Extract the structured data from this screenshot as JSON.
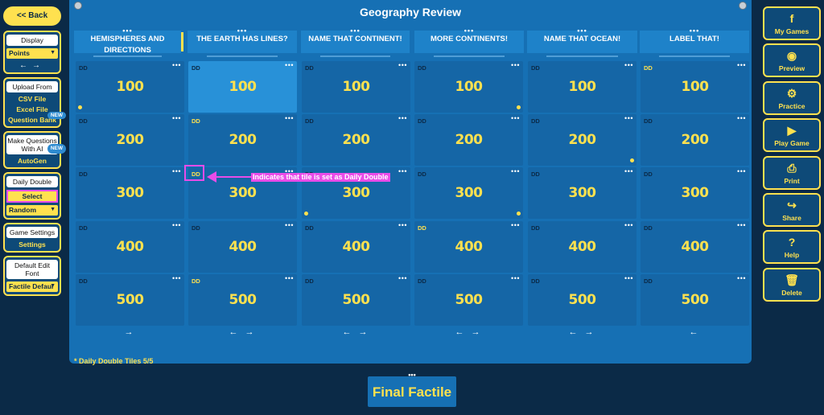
{
  "left": {
    "back_label": "<< Back",
    "display": {
      "label": "Display",
      "value": "Points"
    },
    "upload": {
      "label": "Upload From",
      "csv": "CSV File",
      "excel": "Excel File",
      "bank": "Question Bank",
      "new_badge": "NEW"
    },
    "ai": {
      "label": "Make Questions With AI",
      "new_badge": "NEW",
      "autogen": "AutoGen"
    },
    "daily_double": {
      "label": "Daily Double",
      "select": "Select",
      "mode": "Random"
    },
    "game_settings": {
      "label": "Game Settings",
      "settings": "Settings"
    },
    "font": {
      "label": "Default Edit Font",
      "value": "Factile Defaul"
    }
  },
  "board": {
    "title": "Geography Review",
    "categories": [
      {
        "name": "HEMISPHERES AND DIRECTIONS",
        "dots": "•••"
      },
      {
        "name": "THE EARTH HAS LINES?",
        "dots": "•••"
      },
      {
        "name": "NAME THAT CONTINENT!",
        "dots": "•••"
      },
      {
        "name": "MORE CONTINENTS!",
        "dots": "•••"
      },
      {
        "name": "NAME THAT OCEAN!",
        "dots": "•••"
      },
      {
        "name": "LABEL THAT!",
        "dots": "•••"
      }
    ],
    "tile_dd_label": "DD",
    "tile_dots": "•••",
    "rows": [
      [
        "100",
        "100",
        "100",
        "100",
        "100",
        "100"
      ],
      [
        "200",
        "200",
        "200",
        "200",
        "200",
        "200"
      ],
      [
        "300",
        "300",
        "300",
        "300",
        "300",
        "300"
      ],
      [
        "400",
        "400",
        "400",
        "400",
        "400",
        "400"
      ],
      [
        "500",
        "500",
        "500",
        "500",
        "500",
        "500"
      ]
    ],
    "column_arrows": [
      "→",
      "← →",
      "← →",
      "← →",
      "← →",
      "←"
    ],
    "daily_double_count": "* Daily Double Tiles 5/5",
    "annotation": "Indicates that tile is set as Daily Double",
    "final": {
      "label": "Final Factile",
      "dots": "•••"
    }
  },
  "right": {
    "buttons": [
      {
        "label": "My Games",
        "icon": "facebook-icon",
        "glyph": "f"
      },
      {
        "label": "Preview",
        "icon": "eye-icon",
        "glyph": "◉"
      },
      {
        "label": "Practice",
        "icon": "gears-icon",
        "glyph": "⚙"
      },
      {
        "label": "Play Game",
        "icon": "play-icon",
        "glyph": "▶"
      },
      {
        "label": "Print",
        "icon": "printer-icon",
        "glyph": "⎙"
      },
      {
        "label": "Share",
        "icon": "share-icon",
        "glyph": "↪"
      },
      {
        "label": "Help",
        "icon": "help-icon",
        "glyph": "?"
      },
      {
        "label": "Delete",
        "icon": "trash-icon",
        "glyph": "🗑"
      }
    ]
  }
}
